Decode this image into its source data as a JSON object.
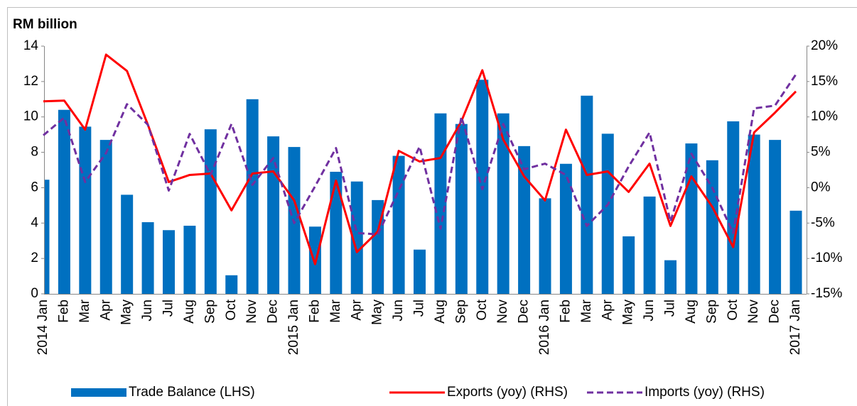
{
  "chart_data": {
    "type": "bar",
    "title": "RM billion",
    "categories": [
      "2014 Jan",
      "Feb",
      "Mar",
      "Apr",
      "May",
      "Jun",
      "Jul",
      "Aug",
      "Sep",
      "Oct",
      "Nov",
      "Dec",
      "2015 Jan",
      "Feb",
      "Mar",
      "Apr",
      "May",
      "Jun",
      "Jul",
      "Aug",
      "Sep",
      "Oct",
      "Nov",
      "Dec",
      "2016 Jan",
      "Feb",
      "Mar",
      "Apr",
      "May",
      "Jun",
      "Jul",
      "Aug",
      "Sep",
      "Oct",
      "Nov",
      "Dec",
      "2017 Jan"
    ],
    "series": [
      {
        "name": "Trade Balance (LHS)",
        "type": "bar",
        "color": "#0070c0",
        "values": [
          6.45,
          10.4,
          9.45,
          8.7,
          5.6,
          4.05,
          3.6,
          3.85,
          9.3,
          1.05,
          11.0,
          8.9,
          8.3,
          3.8,
          6.9,
          6.35,
          5.3,
          7.8,
          2.5,
          10.2,
          9.6,
          12.1,
          10.2,
          8.35,
          5.4,
          7.35,
          11.2,
          9.05,
          3.25,
          5.5,
          1.9,
          8.5,
          7.55,
          9.75,
          9.0,
          8.7,
          4.7
        ]
      },
      {
        "name": "Exports (yoy) (RHS)",
        "type": "line",
        "axis": "y2",
        "color": "#ff0000",
        "line_style": "solid",
        "values": [
          12.2,
          12.3,
          8.2,
          18.8,
          16.5,
          8.9,
          0.8,
          1.8,
          2.0,
          -3.2,
          2.0,
          2.3,
          -1.8,
          -10.8,
          1.0,
          -9.1,
          -6.2,
          5.2,
          3.7,
          4.2,
          9.4,
          16.6,
          6.8,
          1.6,
          -1.8,
          8.2,
          1.8,
          2.3,
          -0.6,
          3.4,
          -5.4,
          1.6,
          -2.7,
          -8.4,
          7.8,
          10.6,
          13.6
        ]
      },
      {
        "name": "Imports (yoy) (RHS)",
        "type": "line",
        "axis": "y2",
        "color": "#7030a0",
        "line_style": "dashed",
        "values": [
          7.4,
          9.9,
          0.8,
          4.9,
          11.8,
          8.9,
          -0.4,
          7.6,
          1.8,
          9.0,
          0.4,
          4.2,
          -5.0,
          0.2,
          5.6,
          -6.4,
          -6.6,
          -0.4,
          5.8,
          -5.8,
          10.0,
          -0.2,
          9.0,
          2.6,
          3.4,
          1.8,
          -5.4,
          -2.4,
          3.0,
          7.8,
          -4.8,
          4.8,
          0,
          -6.4,
          11.2,
          11.6,
          16.0
        ]
      }
    ],
    "ylim": [
      0,
      14
    ],
    "yticks": [
      0,
      2,
      4,
      6,
      8,
      10,
      12,
      14
    ],
    "y2lim": [
      -15,
      20
    ],
    "y2ticks": [
      {
        "value": 20,
        "label": "20%"
      },
      {
        "value": 15,
        "label": "15%"
      },
      {
        "value": 10,
        "label": "10%"
      },
      {
        "value": 5,
        "label": "5%"
      },
      {
        "value": 0,
        "label": "0%"
      },
      {
        "value": -5,
        "label": "-5%"
      },
      {
        "value": -10,
        "label": "-10%"
      },
      {
        "value": -15,
        "label": "-15%"
      }
    ],
    "grid": false,
    "legend": "bottom"
  }
}
